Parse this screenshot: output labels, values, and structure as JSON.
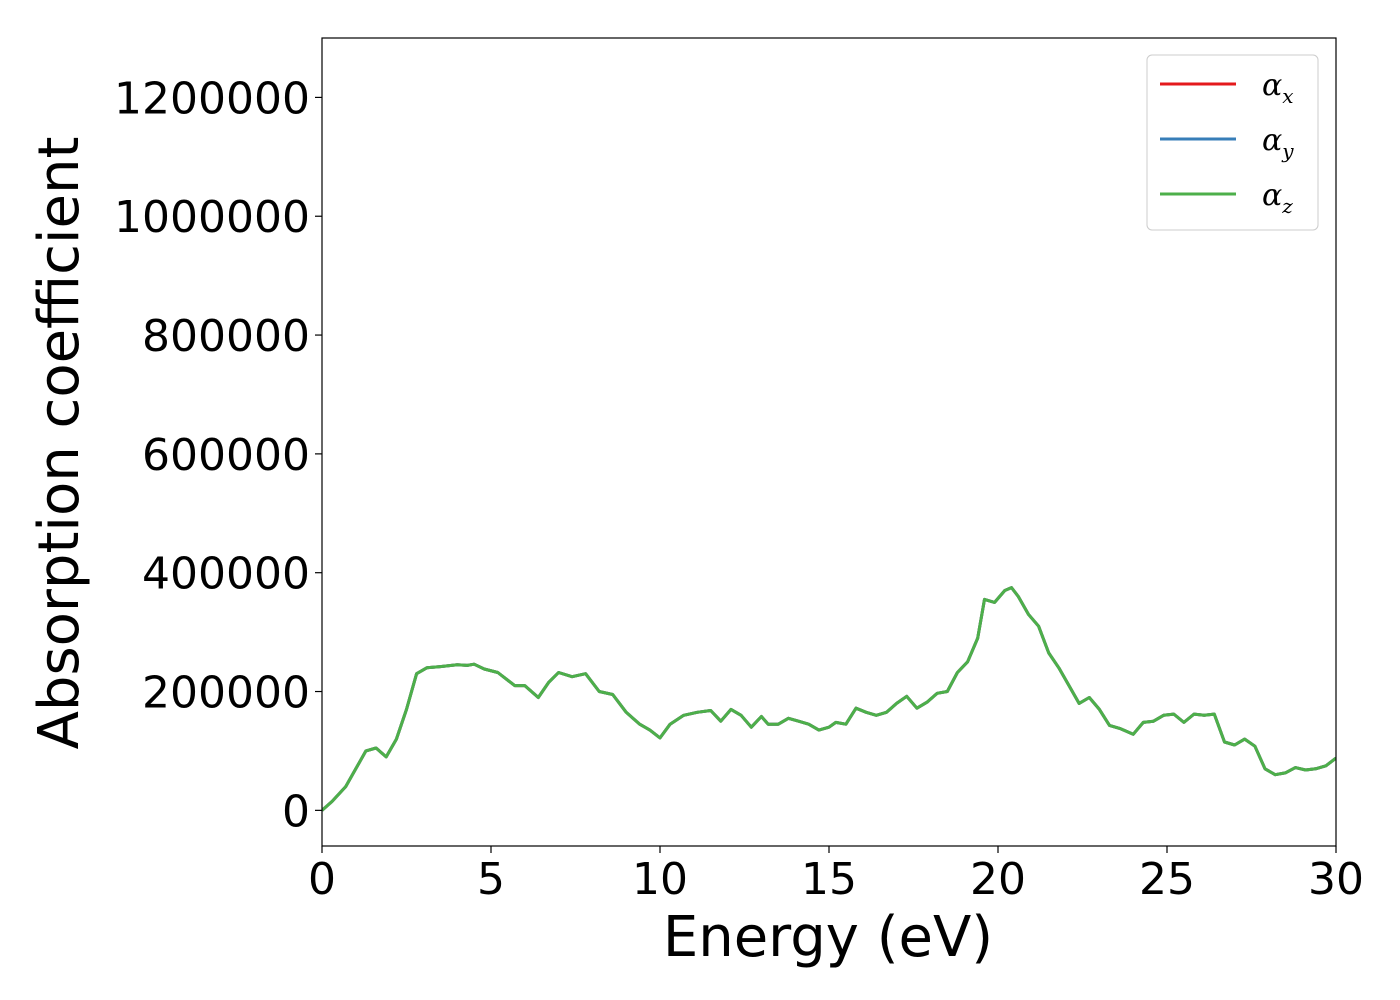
{
  "chart_data": {
    "type": "line",
    "xlabel": "Energy (eV)",
    "ylabel": "Absorption coefficient",
    "xlim": [
      0,
      30
    ],
    "ylim": [
      -60000,
      1300000
    ],
    "xticks": [
      0,
      5,
      10,
      15,
      20,
      25,
      30
    ],
    "xtick_labels": [
      "0",
      "5",
      "10",
      "15",
      "20",
      "25",
      "30"
    ],
    "yticks": [
      0,
      200000,
      400000,
      600000,
      800000,
      1000000,
      1200000
    ],
    "ytick_labels": [
      "0",
      "200000",
      "400000",
      "600000",
      "800000",
      "1000000",
      "1200000"
    ],
    "grid": false,
    "legend_position": "top-right",
    "series": [
      {
        "name": "α",
        "subscript": "x",
        "color": "#e41a1c",
        "x": [
          0,
          0.3,
          0.7,
          1.0,
          1.3,
          1.6,
          1.9,
          2.2,
          2.5,
          2.8,
          3.1,
          3.5,
          4.0,
          4.3,
          4.5,
          4.8,
          5.2,
          5.7,
          6.0,
          6.4,
          6.7,
          7.0,
          7.4,
          7.8,
          8.2,
          8.6,
          9.0,
          9.4,
          9.7,
          10.0,
          10.3,
          10.7,
          11.1,
          11.5,
          11.8,
          12.1,
          12.4,
          12.7,
          13.0,
          13.2,
          13.5,
          13.8,
          14.1,
          14.4,
          14.7,
          15.0,
          15.2,
          15.5,
          15.8,
          16.1,
          16.4,
          16.7,
          17.0,
          17.3,
          17.6,
          17.9,
          18.2,
          18.5,
          18.8,
          19.1,
          19.4,
          19.6,
          19.9,
          20.2,
          20.4,
          20.6,
          20.9,
          21.2,
          21.5,
          21.8,
          22.1,
          22.4,
          22.7,
          23.0,
          23.3,
          23.6,
          24.0,
          24.3,
          24.6,
          24.9,
          25.2,
          25.5,
          25.8,
          26.1,
          26.4,
          26.7,
          27.0,
          27.3,
          27.6,
          27.9,
          28.2,
          28.5,
          28.8,
          29.1,
          29.4,
          29.7,
          30.0
        ],
        "y": [
          0,
          15000,
          40000,
          70000,
          100000,
          105000,
          90000,
          120000,
          170000,
          230000,
          240000,
          242000,
          245000,
          244000,
          246000,
          238000,
          232000,
          210000,
          210000,
          190000,
          215000,
          232000,
          225000,
          230000,
          200000,
          195000,
          165000,
          145000,
          135000,
          122000,
          145000,
          160000,
          165000,
          168000,
          150000,
          170000,
          160000,
          140000,
          158000,
          145000,
          145000,
          155000,
          150000,
          145000,
          135000,
          140000,
          148000,
          145000,
          172000,
          165000,
          160000,
          165000,
          180000,
          192000,
          172000,
          182000,
          197000,
          200000,
          232000,
          250000,
          290000,
          355000,
          350000,
          370000,
          375000,
          360000,
          330000,
          310000,
          265000,
          240000,
          210000,
          180000,
          190000,
          170000,
          143000,
          138000,
          128000,
          148000,
          150000,
          160000,
          162000,
          148000,
          162000,
          160000,
          162000,
          115000,
          110000,
          120000,
          108000,
          70000,
          60000,
          63000,
          72000,
          68000,
          70000,
          75000,
          88000
        ]
      },
      {
        "name": "α",
        "subscript": "y",
        "color": "#377eb8",
        "x": [
          0,
          0.3,
          0.7,
          1.0,
          1.3,
          1.6,
          1.9,
          2.2,
          2.5,
          2.8,
          3.1,
          3.5,
          4.0,
          4.3,
          4.5,
          4.8,
          5.2,
          5.7,
          6.0,
          6.4,
          6.7,
          7.0,
          7.4,
          7.8,
          8.2,
          8.6,
          9.0,
          9.4,
          9.7,
          10.0,
          10.3,
          10.7,
          11.1,
          11.5,
          11.8,
          12.1,
          12.4,
          12.7,
          13.0,
          13.2,
          13.5,
          13.8,
          14.1,
          14.4,
          14.7,
          15.0,
          15.2,
          15.5,
          15.8,
          16.1,
          16.4,
          16.7,
          17.0,
          17.3,
          17.6,
          17.9,
          18.2,
          18.5,
          18.8,
          19.1,
          19.4,
          19.6,
          19.9,
          20.2,
          20.4,
          20.6,
          20.9,
          21.2,
          21.5,
          21.8,
          22.1,
          22.4,
          22.7,
          23.0,
          23.3,
          23.6,
          24.0,
          24.3,
          24.6,
          24.9,
          25.2,
          25.5,
          25.8,
          26.1,
          26.4,
          26.7,
          27.0,
          27.3,
          27.6,
          27.9,
          28.2,
          28.5,
          28.8,
          29.1,
          29.4,
          29.7,
          30.0
        ],
        "y": [
          0,
          15000,
          40000,
          70000,
          100000,
          105000,
          90000,
          120000,
          170000,
          230000,
          240000,
          242000,
          245000,
          244000,
          246000,
          238000,
          232000,
          210000,
          210000,
          190000,
          215000,
          232000,
          225000,
          230000,
          200000,
          195000,
          165000,
          145000,
          135000,
          122000,
          145000,
          160000,
          165000,
          168000,
          150000,
          170000,
          160000,
          140000,
          158000,
          145000,
          145000,
          155000,
          150000,
          145000,
          135000,
          140000,
          148000,
          145000,
          172000,
          165000,
          160000,
          165000,
          180000,
          192000,
          172000,
          182000,
          197000,
          200000,
          232000,
          250000,
          290000,
          355000,
          350000,
          370000,
          375000,
          360000,
          330000,
          310000,
          265000,
          240000,
          210000,
          180000,
          190000,
          170000,
          143000,
          138000,
          128000,
          148000,
          150000,
          160000,
          162000,
          148000,
          162000,
          160000,
          162000,
          115000,
          110000,
          120000,
          108000,
          70000,
          60000,
          63000,
          72000,
          68000,
          70000,
          75000,
          88000
        ]
      },
      {
        "name": "α",
        "subscript": "z",
        "color": "#4daf4a",
        "x": [
          0,
          0.3,
          0.7,
          1.0,
          1.3,
          1.6,
          1.9,
          2.2,
          2.5,
          2.8,
          3.1,
          3.5,
          4.0,
          4.3,
          4.5,
          4.8,
          5.2,
          5.7,
          6.0,
          6.4,
          6.7,
          7.0,
          7.4,
          7.8,
          8.2,
          8.6,
          9.0,
          9.4,
          9.7,
          10.0,
          10.3,
          10.7,
          11.1,
          11.5,
          11.8,
          12.1,
          12.4,
          12.7,
          13.0,
          13.2,
          13.5,
          13.8,
          14.1,
          14.4,
          14.7,
          15.0,
          15.2,
          15.5,
          15.8,
          16.1,
          16.4,
          16.7,
          17.0,
          17.3,
          17.6,
          17.9,
          18.2,
          18.5,
          18.8,
          19.1,
          19.4,
          19.6,
          19.9,
          20.2,
          20.4,
          20.6,
          20.9,
          21.2,
          21.5,
          21.8,
          22.1,
          22.4,
          22.7,
          23.0,
          23.3,
          23.6,
          24.0,
          24.3,
          24.6,
          24.9,
          25.2,
          25.5,
          25.8,
          26.1,
          26.4,
          26.7,
          27.0,
          27.3,
          27.6,
          27.9,
          28.2,
          28.5,
          28.8,
          29.1,
          29.4,
          29.7,
          30.0
        ],
        "y": [
          0,
          15000,
          40000,
          70000,
          100000,
          105000,
          90000,
          120000,
          170000,
          230000,
          240000,
          242000,
          245000,
          244000,
          246000,
          238000,
          232000,
          210000,
          210000,
          190000,
          215000,
          232000,
          225000,
          230000,
          200000,
          195000,
          165000,
          145000,
          135000,
          122000,
          145000,
          160000,
          165000,
          168000,
          150000,
          170000,
          160000,
          140000,
          158000,
          145000,
          145000,
          155000,
          150000,
          145000,
          135000,
          140000,
          148000,
          145000,
          172000,
          165000,
          160000,
          165000,
          180000,
          192000,
          172000,
          182000,
          197000,
          200000,
          232000,
          250000,
          290000,
          355000,
          350000,
          370000,
          375000,
          360000,
          330000,
          310000,
          265000,
          240000,
          210000,
          180000,
          190000,
          170000,
          143000,
          138000,
          128000,
          148000,
          150000,
          160000,
          162000,
          148000,
          162000,
          160000,
          162000,
          115000,
          110000,
          120000,
          108000,
          70000,
          60000,
          63000,
          72000,
          68000,
          70000,
          75000,
          88000
        ]
      }
    ]
  }
}
